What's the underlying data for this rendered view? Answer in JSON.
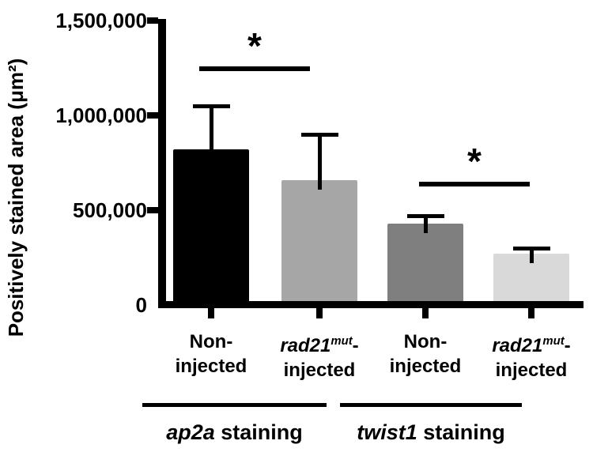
{
  "chart_data": {
    "type": "bar",
    "title": "",
    "ylabel": "Positively stained area (μm²)",
    "xlabel": "",
    "ylim": [
      0,
      1500000
    ],
    "grid": false,
    "legend_position": "none",
    "error_bars": "upper_only",
    "yticks": [
      {
        "value": 0,
        "label": "0"
      },
      {
        "value": 500000,
        "label": "500,000"
      },
      {
        "value": 1000000,
        "label": "1,000,000"
      },
      {
        "value": 1500000,
        "label": "1,500,000"
      }
    ],
    "categories": [
      "Non-injected",
      "rad21mut-injected",
      "Non-injected",
      "rad21mut-injected"
    ],
    "bars": [
      {
        "category": "Non-injected",
        "group": "ap2a staining",
        "value": 820000,
        "error_top": 1050000,
        "color": "#000000",
        "label_lines": [
          [
            {
              "text": "Non-"
            }
          ],
          [
            {
              "text": "injected"
            }
          ]
        ]
      },
      {
        "category": "rad21mut-injected",
        "group": "ap2a staining",
        "value": 660000,
        "error_top": 900000,
        "color": "#a6a6a6",
        "label_lines": [
          [
            {
              "text": "rad21",
              "italic": true
            },
            {
              "text": "mut",
              "italic": true,
              "sup": true
            },
            {
              "text": "-"
            }
          ],
          [
            {
              "text": "injected"
            }
          ]
        ]
      },
      {
        "category": "Non-injected",
        "group": "twist1 staining",
        "value": 430000,
        "error_top": 470000,
        "color": "#7f7f7f",
        "label_lines": [
          [
            {
              "text": "Non-"
            }
          ],
          [
            {
              "text": "injected"
            }
          ]
        ]
      },
      {
        "category": "rad21mut-injected",
        "group": "twist1 staining",
        "value": 270000,
        "error_top": 300000,
        "color": "#d9d9d9",
        "label_lines": [
          [
            {
              "text": "rad21",
              "italic": true
            },
            {
              "text": "mut",
              "italic": true,
              "sup": true
            },
            {
              "text": "-"
            }
          ],
          [
            {
              "text": "injected"
            }
          ]
        ]
      }
    ],
    "significance": [
      {
        "symbol": "*",
        "between_bars": [
          0,
          1
        ]
      },
      {
        "symbol": "*",
        "between_bars": [
          2,
          3
        ]
      }
    ],
    "groups": [
      {
        "label": "ap2a staining",
        "label_parts": [
          {
            "text": "ap2a",
            "italic": true
          },
          {
            "text": " staining"
          }
        ],
        "bars": [
          0,
          1
        ]
      },
      {
        "label": "twist1 staining",
        "label_parts": [
          {
            "text": "twist1",
            "italic": true
          },
          {
            "text": " staining"
          }
        ],
        "bars": [
          2,
          3
        ]
      }
    ]
  }
}
